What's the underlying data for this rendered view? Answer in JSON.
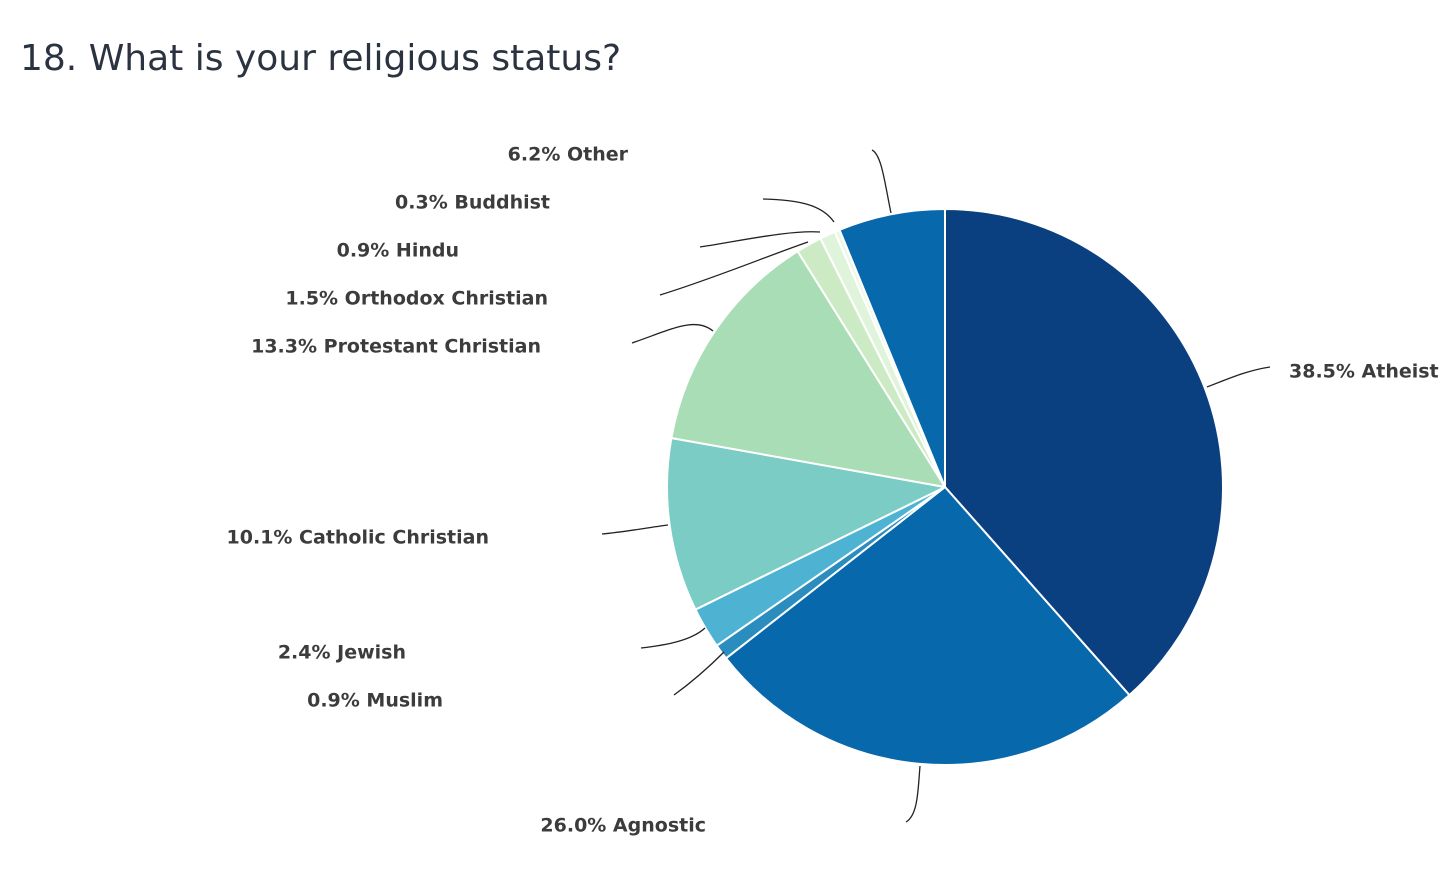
{
  "chart_data": {
    "type": "pie",
    "title": "18. What is your religious status?",
    "unit": "%",
    "slices": [
      {
        "label": "38.5% Atheist",
        "value": 38.5,
        "color": "#0a3f80"
      },
      {
        "label": "26.0% Agnostic",
        "value": 26.0,
        "color": "#0868ac"
      },
      {
        "label": "0.9% Muslim",
        "value": 0.9,
        "color": "#2b8cbe"
      },
      {
        "label": "2.4% Jewish",
        "value": 2.4,
        "color": "#4eb3d3"
      },
      {
        "label": "10.1% Catholic Christian",
        "value": 10.1,
        "color": "#7bccc4"
      },
      {
        "label": "13.3% Protestant Christian",
        "value": 13.3,
        "color": "#a8ddb5"
      },
      {
        "label": "1.5% Orthodox Christian",
        "value": 1.5,
        "color": "#ccebc5"
      },
      {
        "label": "0.9% Hindu",
        "value": 0.9,
        "color": "#e0f3db"
      },
      {
        "label": "0.3% Buddhist",
        "value": 0.3,
        "color": "#eef8ea"
      },
      {
        "label": "6.2% Other",
        "value": 6.2,
        "color": "#0868ac"
      }
    ]
  }
}
